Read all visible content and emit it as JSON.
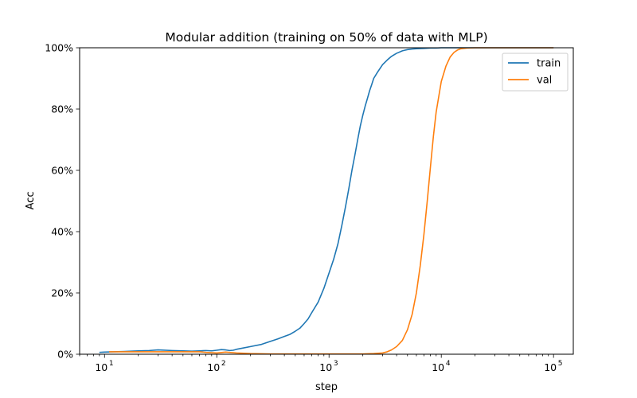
{
  "chart_data": {
    "type": "line",
    "title": "Modular addition (training on 50% of data with MLP)",
    "xlabel": "step",
    "ylabel": "Acc",
    "xscale": "log",
    "xlim": [
      6,
      150000
    ],
    "ylim": [
      0,
      1
    ],
    "grid": false,
    "legend": "top-right",
    "y_ticks": [
      {
        "value": 0,
        "label": "0%"
      },
      {
        "value": 0.2,
        "label": "20%"
      },
      {
        "value": 0.4,
        "label": "40%"
      },
      {
        "value": 0.6,
        "label": "60%"
      },
      {
        "value": 0.8,
        "label": "80%"
      },
      {
        "value": 1.0,
        "label": "100%"
      }
    ],
    "x_ticks": [
      {
        "value": 10,
        "base": "10",
        "exp": "1"
      },
      {
        "value": 100,
        "base": "10",
        "exp": "2"
      },
      {
        "value": 1000,
        "base": "10",
        "exp": "3"
      },
      {
        "value": 10000,
        "base": "10",
        "exp": "4"
      },
      {
        "value": 100000,
        "base": "10",
        "exp": "5"
      }
    ],
    "series": [
      {
        "name": "train",
        "color": "#1f77b4",
        "x": [
          9,
          10,
          15,
          20,
          25,
          30,
          40,
          50,
          60,
          70,
          80,
          90,
          100,
          110,
          120,
          130,
          140,
          150,
          170,
          200,
          250,
          300,
          350,
          400,
          450,
          500,
          550,
          600,
          650,
          700,
          800,
          900,
          1000,
          1100,
          1200,
          1300,
          1400,
          1500,
          1600,
          1700,
          1800,
          1900,
          2000,
          2100,
          2200,
          2300,
          2400,
          2500,
          2700,
          3000,
          3300,
          3600,
          4000,
          4500,
          5000,
          5500,
          6000,
          7000,
          8000,
          9000,
          10000,
          11000,
          12000,
          15000,
          20000,
          30000,
          50000,
          100000
        ],
        "y": [
          0.006,
          0.007,
          0.009,
          0.011,
          0.012,
          0.014,
          0.012,
          0.011,
          0.01,
          0.011,
          0.012,
          0.011,
          0.013,
          0.015,
          0.014,
          0.012,
          0.013,
          0.016,
          0.02,
          0.025,
          0.032,
          0.042,
          0.05,
          0.058,
          0.065,
          0.075,
          0.085,
          0.1,
          0.115,
          0.135,
          0.17,
          0.215,
          0.265,
          0.31,
          0.36,
          0.42,
          0.48,
          0.54,
          0.6,
          0.65,
          0.7,
          0.745,
          0.78,
          0.81,
          0.835,
          0.86,
          0.88,
          0.9,
          0.92,
          0.945,
          0.96,
          0.972,
          0.982,
          0.99,
          0.994,
          0.996,
          0.997,
          0.998,
          0.999,
          0.999,
          1.0,
          1.0,
          1.0,
          1.0,
          1.0,
          1.0,
          1.0,
          1.0
        ]
      },
      {
        "name": "val",
        "color": "#ff7f0e",
        "x": [
          11,
          15,
          20,
          30,
          40,
          50,
          60,
          70,
          80,
          90,
          100,
          120,
          150,
          200,
          300,
          500,
          1000,
          2000,
          2500,
          3000,
          3300,
          3600,
          4000,
          4500,
          5000,
          5500,
          6000,
          6500,
          7000,
          7500,
          8000,
          8500,
          9000,
          10000,
          11000,
          12000,
          13000,
          14000,
          15000,
          17000,
          20000,
          30000,
          50000,
          100000
        ],
        "y": [
          0.008,
          0.008,
          0.008,
          0.008,
          0.008,
          0.008,
          0.008,
          0.008,
          0.006,
          0.005,
          0.004,
          0.007,
          0.004,
          0.002,
          0.001,
          0.001,
          0.001,
          0.001,
          0.002,
          0.004,
          0.008,
          0.014,
          0.025,
          0.045,
          0.08,
          0.13,
          0.2,
          0.29,
          0.39,
          0.5,
          0.61,
          0.71,
          0.79,
          0.89,
          0.94,
          0.97,
          0.985,
          0.993,
          0.997,
          0.999,
          1.0,
          1.0,
          1.0,
          1.0
        ]
      }
    ]
  }
}
